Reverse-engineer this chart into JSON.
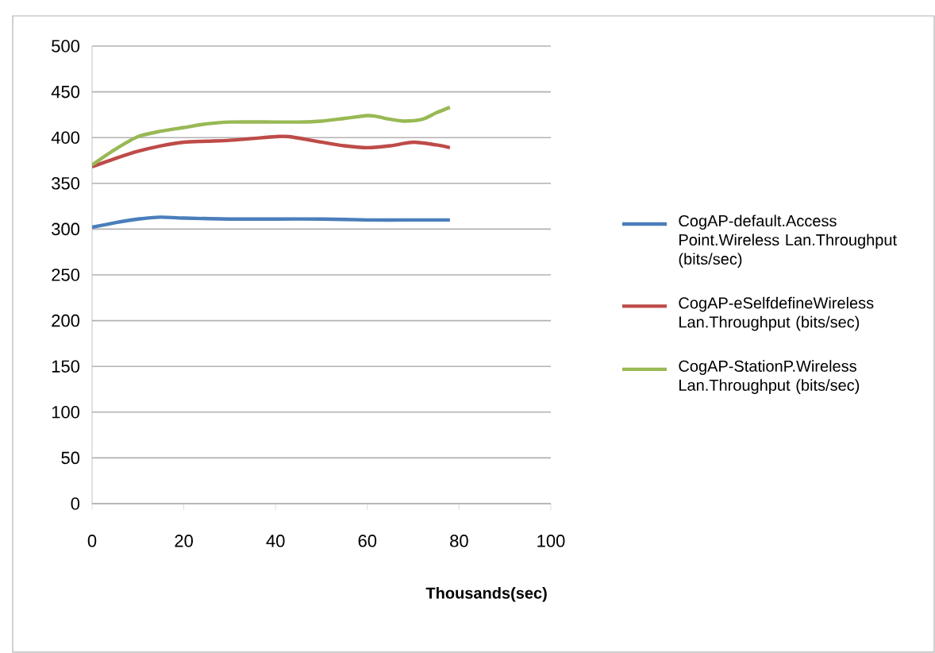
{
  "chart_data": {
    "type": "line",
    "xlabel": "Thousands(sec)",
    "xlim": [
      0,
      100
    ],
    "xticks": [
      0,
      20,
      40,
      60,
      80,
      100
    ],
    "ylim": [
      0,
      500
    ],
    "yticks": [
      0,
      50,
      100,
      150,
      200,
      250,
      300,
      350,
      400,
      450,
      500
    ],
    "grid": "y",
    "legend": "right",
    "marker": "none",
    "line_style": "solid",
    "series": [
      {
        "name": "CogAP-default.Access Point.Wireless Lan.Throughput (bits/sec)",
        "color": "#4a7ebb",
        "x": [
          0,
          5,
          10,
          15,
          20,
          30,
          40,
          50,
          60,
          70,
          78
        ],
        "values": [
          302,
          307,
          311,
          313,
          312,
          311,
          311,
          311,
          310,
          310,
          310
        ]
      },
      {
        "name": "CogAP-eSelfdefineWireless Lan.Throughput (bits/sec)",
        "color": "#be4b48",
        "x": [
          0,
          5,
          10,
          15,
          20,
          25,
          30,
          35,
          40,
          43,
          50,
          55,
          60,
          65,
          70,
          75,
          78
        ],
        "values": [
          368,
          377,
          385,
          391,
          395,
          396,
          397,
          399,
          401,
          401,
          395,
          391,
          389,
          391,
          395,
          392,
          389
        ]
      },
      {
        "name": "CogAP-StationP.Wireless Lan.Throughput (bits/sec)",
        "color": "#98b954",
        "x": [
          0,
          5,
          10,
          15,
          20,
          25,
          30,
          40,
          45,
          50,
          55,
          60,
          62,
          65,
          68,
          72,
          75,
          78
        ],
        "values": [
          370,
          387,
          401,
          407,
          411,
          415,
          417,
          417,
          417,
          418,
          421,
          424,
          423,
          420,
          418,
          420,
          427,
          433
        ]
      }
    ]
  }
}
